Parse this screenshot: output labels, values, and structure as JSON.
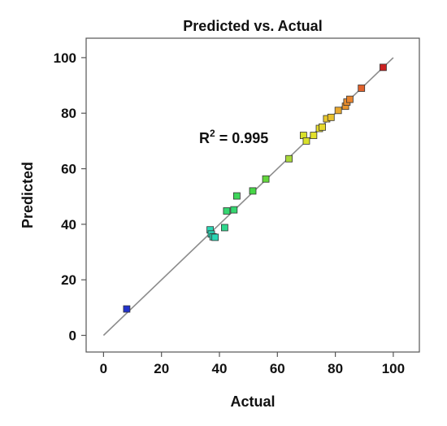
{
  "chart_data": {
    "type": "scatter",
    "title": "Predicted vs. Actual",
    "xlabel": "Actual",
    "ylabel": "Predicted",
    "xlim": [
      -6,
      109
    ],
    "ylim": [
      -6,
      107
    ],
    "xticks": [
      0,
      20,
      40,
      60,
      80,
      100
    ],
    "yticks": [
      0,
      20,
      40,
      60,
      80,
      100
    ],
    "xtick_labels": [
      "0",
      "20",
      "40",
      "60",
      "80",
      "100"
    ],
    "ytick_labels": [
      "0",
      "20",
      "40",
      "60",
      "80",
      "100"
    ],
    "grid": false,
    "reference_line": {
      "from": [
        0,
        0
      ],
      "to": [
        100,
        100
      ],
      "color": "#8c8c8c"
    },
    "annotation": {
      "base": "R",
      "sup": "2",
      "rest": " = 0.995"
    },
    "points": [
      {
        "x": 8,
        "y": 9.5,
        "color": "#2233cc"
      },
      {
        "x": 36.8,
        "y": 38,
        "color": "#2ad6b4"
      },
      {
        "x": 37.2,
        "y": 36.5,
        "color": "#2ad6b4"
      },
      {
        "x": 37.8,
        "y": 35.5,
        "color": "#2ad6b4"
      },
      {
        "x": 38.5,
        "y": 35.3,
        "color": "#2ad6b4"
      },
      {
        "x": 41.8,
        "y": 38.8,
        "color": "#2fd68c"
      },
      {
        "x": 42.5,
        "y": 44.8,
        "color": "#35d670"
      },
      {
        "x": 45,
        "y": 45.2,
        "color": "#35d670"
      },
      {
        "x": 46,
        "y": 50.2,
        "color": "#3ed65a"
      },
      {
        "x": 51.5,
        "y": 52,
        "color": "#46d646"
      },
      {
        "x": 56,
        "y": 56.3,
        "color": "#62d63c"
      },
      {
        "x": 64,
        "y": 63.6,
        "color": "#a8d83a"
      },
      {
        "x": 69,
        "y": 72,
        "color": "#d8e02a"
      },
      {
        "x": 70,
        "y": 70,
        "color": "#d8e02a"
      },
      {
        "x": 72.5,
        "y": 72,
        "color": "#e2e02a"
      },
      {
        "x": 74.5,
        "y": 74.5,
        "color": "#e6dc2a"
      },
      {
        "x": 75.5,
        "y": 75,
        "color": "#e6d82a"
      },
      {
        "x": 77,
        "y": 78,
        "color": "#e8c82c"
      },
      {
        "x": 78.5,
        "y": 78.5,
        "color": "#e8c02c"
      },
      {
        "x": 81,
        "y": 81,
        "color": "#e8a82e"
      },
      {
        "x": 83.5,
        "y": 82.5,
        "color": "#e8942e"
      },
      {
        "x": 84,
        "y": 84,
        "color": "#e88c2e"
      },
      {
        "x": 85,
        "y": 85,
        "color": "#e8842e"
      },
      {
        "x": 89,
        "y": 89,
        "color": "#e0622c"
      },
      {
        "x": 96.5,
        "y": 96.5,
        "color": "#cc2222"
      }
    ]
  }
}
